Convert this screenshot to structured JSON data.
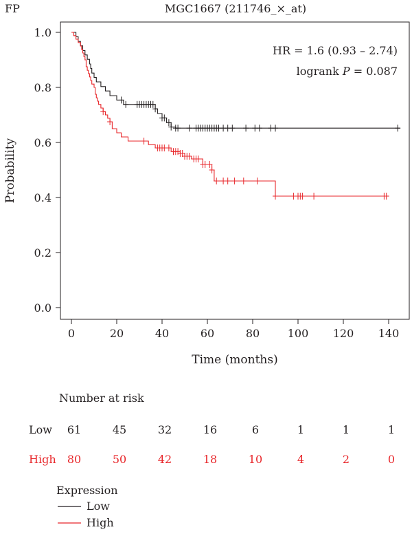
{
  "panel_label": "FP",
  "chart_data": {
    "type": "line",
    "title": "MGC1667 (211746_×_at)",
    "xlabel": "Time (months)",
    "ylabel": "Probability",
    "xlim": [
      -5,
      145
    ],
    "ylim": [
      0,
      1.0
    ],
    "x_ticks": [
      0,
      20,
      40,
      60,
      80,
      100,
      120,
      140
    ],
    "y_ticks": [
      0.0,
      0.2,
      0.4,
      0.6,
      0.8,
      1.0
    ],
    "y_tick_labels": [
      "0.0",
      "0.2",
      "0.4",
      "0.6",
      "0.8",
      "1.0"
    ],
    "annotations": {
      "hr": "HR = 1.6 (0.93 – 2.74)",
      "logrank_prefix": "logrank ",
      "logrank_p": "P",
      "logrank_suffix": " = 0.087"
    },
    "colors": {
      "Low": "#231f20",
      "High": "#e8262a"
    },
    "series": [
      {
        "name": "Low",
        "color": "#231f20",
        "steps": [
          [
            0,
            1.0
          ],
          [
            2,
            1.0
          ],
          [
            2,
            0.984
          ],
          [
            3,
            0.967
          ],
          [
            4,
            0.951
          ],
          [
            5,
            0.934
          ],
          [
            6,
            0.918
          ],
          [
            7,
            0.902
          ],
          [
            8,
            0.885
          ],
          [
            8.5,
            0.869
          ],
          [
            9,
            0.852
          ],
          [
            10,
            0.836
          ],
          [
            11,
            0.82
          ],
          [
            13,
            0.803
          ],
          [
            15,
            0.787
          ],
          [
            17,
            0.77
          ],
          [
            20,
            0.754
          ],
          [
            23,
            0.738
          ],
          [
            37,
            0.722
          ],
          [
            38,
            0.705
          ],
          [
            40,
            0.689
          ],
          [
            42,
            0.672
          ],
          [
            44,
            0.656
          ],
          [
            46,
            0.656
          ],
          [
            46,
            0.652
          ],
          [
            145,
            0.652
          ]
        ],
        "censor": [
          22,
          24,
          29,
          30,
          31,
          32,
          33,
          34,
          35,
          36,
          37,
          40,
          41,
          43,
          44,
          46,
          47,
          52,
          55,
          56,
          57,
          58,
          59,
          60,
          61,
          62,
          63,
          64,
          65,
          67,
          69,
          71,
          77,
          81,
          83,
          88,
          90,
          144
        ]
      },
      {
        "name": "High",
        "color": "#e8262a",
        "steps": [
          [
            0,
            1.0
          ],
          [
            1,
            1.0
          ],
          [
            1,
            0.988
          ],
          [
            2,
            0.975
          ],
          [
            3,
            0.963
          ],
          [
            4,
            0.95
          ],
          [
            4.5,
            0.938
          ],
          [
            5,
            0.925
          ],
          [
            5.5,
            0.912
          ],
          [
            6,
            0.9
          ],
          [
            6.5,
            0.875
          ],
          [
            7,
            0.862
          ],
          [
            7.5,
            0.85
          ],
          [
            8,
            0.838
          ],
          [
            8.5,
            0.825
          ],
          [
            9,
            0.812
          ],
          [
            10,
            0.8
          ],
          [
            10.5,
            0.775
          ],
          [
            11,
            0.762
          ],
          [
            11.5,
            0.75
          ],
          [
            12,
            0.738
          ],
          [
            13,
            0.725
          ],
          [
            14,
            0.712
          ],
          [
            15,
            0.7
          ],
          [
            16,
            0.688
          ],
          [
            17,
            0.675
          ],
          [
            18,
            0.65
          ],
          [
            20,
            0.635
          ],
          [
            22,
            0.62
          ],
          [
            25,
            0.605
          ],
          [
            28,
            0.605
          ],
          [
            34,
            0.592
          ],
          [
            37,
            0.58
          ],
          [
            39,
            0.58
          ],
          [
            44,
            0.567
          ],
          [
            48,
            0.56
          ],
          [
            50,
            0.55
          ],
          [
            53,
            0.54
          ],
          [
            58,
            0.52
          ],
          [
            62,
            0.5
          ],
          [
            63,
            0.46
          ],
          [
            88,
            0.46
          ],
          [
            90,
            0.405
          ],
          [
            139,
            0.405
          ]
        ],
        "censor": [
          14,
          17,
          32,
          38,
          39,
          40,
          41,
          43,
          45,
          46,
          47,
          48,
          49,
          50,
          51,
          52,
          54,
          55,
          56,
          58,
          59,
          61,
          62,
          64,
          67,
          69,
          72,
          76,
          82,
          90,
          98,
          100,
          101,
          102,
          107,
          138,
          139
        ]
      }
    ]
  },
  "risk_table": {
    "title": "Number at risk",
    "times": [
      0,
      20,
      40,
      60,
      80,
      100,
      120,
      140
    ],
    "rows": [
      {
        "label": "Low",
        "color": "#231f20",
        "values": [
          61,
          45,
          32,
          16,
          6,
          1,
          1,
          1
        ]
      },
      {
        "label": "High",
        "color": "#e8262a",
        "values": [
          80,
          50,
          42,
          18,
          10,
          4,
          2,
          0
        ]
      }
    ]
  },
  "legend": {
    "title": "Expression",
    "items": [
      {
        "label": "Low",
        "color": "#231f20"
      },
      {
        "label": "High",
        "color": "#e8262a"
      }
    ]
  }
}
